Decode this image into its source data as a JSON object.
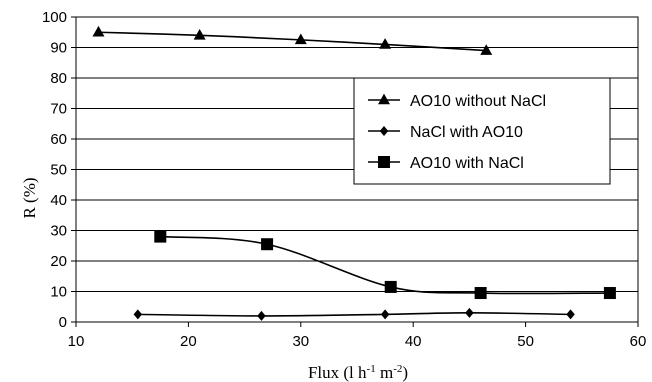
{
  "chart_data": {
    "type": "line",
    "xlabel": {
      "base": "Flux (l h",
      "sup1": "-1",
      "mid": " m",
      "sup2": "-2",
      "end": ")"
    },
    "ylabel": "R (%)",
    "xlim": [
      10,
      60
    ],
    "ylim": [
      0,
      100
    ],
    "xticks": [
      "10",
      "20",
      "30",
      "40",
      "50",
      "60"
    ],
    "yticks": [
      "0",
      "10",
      "20",
      "30",
      "40",
      "50",
      "60",
      "70",
      "80",
      "90",
      "100"
    ],
    "grid": "horizontal",
    "legend_position": "right",
    "series": [
      {
        "name": "AO10 without NaCl",
        "marker": "triangle",
        "color": "#000000",
        "x": [
          12,
          21,
          30,
          37.5,
          46.5
        ],
        "y": [
          95,
          94,
          92.5,
          91,
          89
        ]
      },
      {
        "name": "NaCl with AO10",
        "marker": "diamond",
        "color": "#000000",
        "x": [
          15.5,
          26.5,
          37.5,
          45,
          54
        ],
        "y": [
          2.5,
          2,
          2.5,
          3,
          2.5
        ]
      },
      {
        "name": "AO10 with NaCl",
        "marker": "square",
        "color": "#000000",
        "x": [
          17.5,
          27,
          38,
          46,
          57.5
        ],
        "y": [
          28,
          25.5,
          11.5,
          9.5,
          9.5
        ]
      }
    ]
  }
}
